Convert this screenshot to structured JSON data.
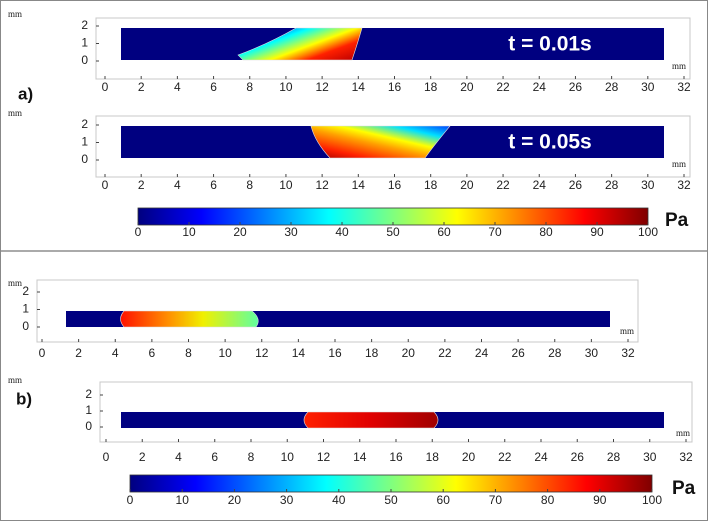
{
  "panel_labels": [
    "a)",
    "b)"
  ],
  "chart_data": [
    {
      "type": "field",
      "panel": "a)",
      "annotation": "t = 0.01s",
      "x_unit": "mm",
      "y_unit": "mm",
      "xlim": [
        0,
        32
      ],
      "xticks": [
        0,
        2,
        4,
        6,
        8,
        10,
        12,
        14,
        16,
        18,
        20,
        22,
        24,
        26,
        28,
        30,
        32
      ],
      "ylim": [
        0,
        2
      ],
      "yticks": [
        0,
        1,
        2
      ]
    },
    {
      "type": "field",
      "panel": "a)",
      "annotation": "t = 0.05s",
      "x_unit": "mm",
      "y_unit": "mm",
      "xlim": [
        0,
        32
      ],
      "xticks": [
        0,
        2,
        4,
        6,
        8,
        10,
        12,
        14,
        16,
        18,
        20,
        22,
        24,
        26,
        28,
        30,
        32
      ],
      "ylim": [
        0,
        2
      ],
      "yticks": [
        0,
        1,
        2
      ]
    },
    {
      "type": "field",
      "panel": "b)",
      "x_unit": "mm",
      "y_unit": "mm",
      "xlim": [
        0,
        32
      ],
      "xticks": [
        0,
        2,
        4,
        6,
        8,
        10,
        12,
        14,
        16,
        18,
        20,
        22,
        24,
        26,
        28,
        30,
        32
      ],
      "ylim": [
        0,
        2
      ],
      "yticks": [
        0,
        1,
        2
      ]
    },
    {
      "type": "field",
      "panel": "b)",
      "x_unit": "mm",
      "y_unit": "mm",
      "xlim": [
        0,
        32
      ],
      "xticks": [
        0,
        2,
        4,
        6,
        8,
        10,
        12,
        14,
        16,
        18,
        20,
        22,
        24,
        26,
        28,
        30,
        32
      ],
      "ylim": [
        0,
        2
      ],
      "yticks": [
        0,
        1,
        2
      ]
    }
  ],
  "colorbars": [
    {
      "unit": "Pa",
      "lim": [
        0,
        100
      ],
      "ticks": [
        0,
        10,
        20,
        30,
        40,
        50,
        60,
        70,
        80,
        90,
        100
      ]
    },
    {
      "unit": "Pa",
      "lim": [
        0,
        100
      ],
      "ticks": [
        0,
        10,
        20,
        30,
        40,
        50,
        60,
        70,
        80,
        90,
        100
      ]
    }
  ]
}
